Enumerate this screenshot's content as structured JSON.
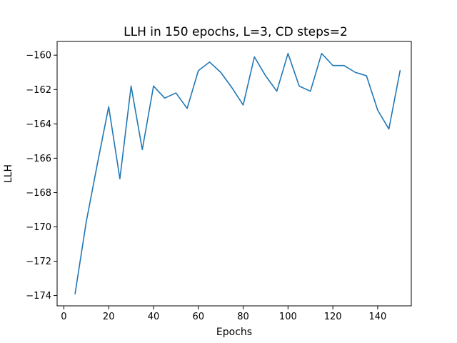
{
  "chart_data": {
    "type": "line",
    "title": "LLH in 150 epochs, L=3, CD steps=2",
    "xlabel": "Epochs",
    "ylabel": "LLH",
    "xlim": [
      -3,
      155
    ],
    "ylim": [
      -174.6,
      -159.2
    ],
    "x_ticks": [
      0,
      20,
      40,
      60,
      80,
      100,
      120,
      140
    ],
    "y_ticks": [
      -174,
      -172,
      -170,
      -168,
      -166,
      -164,
      -162,
      -160
    ],
    "x_tick_labels": [
      "0",
      "20",
      "40",
      "60",
      "80",
      "100",
      "120",
      "140"
    ],
    "y_tick_labels": [
      "−174",
      "−172",
      "−170",
      "−168",
      "−166",
      "−164",
      "−162",
      "−160"
    ],
    "grid": false,
    "series": [
      {
        "color": "#1f77b4",
        "x": [
          5,
          10,
          15,
          20,
          25,
          30,
          35,
          40,
          45,
          50,
          55,
          60,
          65,
          70,
          75,
          80,
          85,
          90,
          95,
          100,
          105,
          110,
          115,
          120,
          125,
          130,
          135,
          140,
          145,
          150
        ],
        "y": [
          -173.9,
          -169.7,
          -166.3,
          -163.0,
          -167.2,
          -161.8,
          -165.5,
          -161.8,
          -162.5,
          -162.2,
          -163.1,
          -160.9,
          -160.4,
          -161.0,
          -161.9,
          -162.9,
          -160.1,
          -161.2,
          -162.1,
          -159.9,
          -161.8,
          -162.1,
          -159.9,
          -160.6,
          -160.6,
          -161.0,
          -161.2,
          -163.2,
          -164.3,
          -160.9
        ]
      }
    ]
  }
}
